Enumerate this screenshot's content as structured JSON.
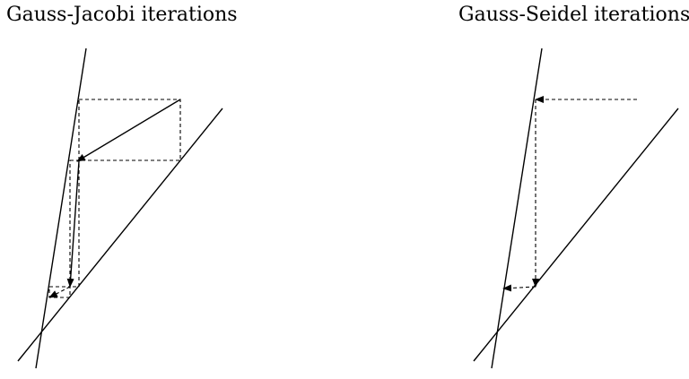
{
  "titles": {
    "left": "Gauss-Jacobi iterations",
    "right": "Gauss-Seidel iterations"
  }
}
